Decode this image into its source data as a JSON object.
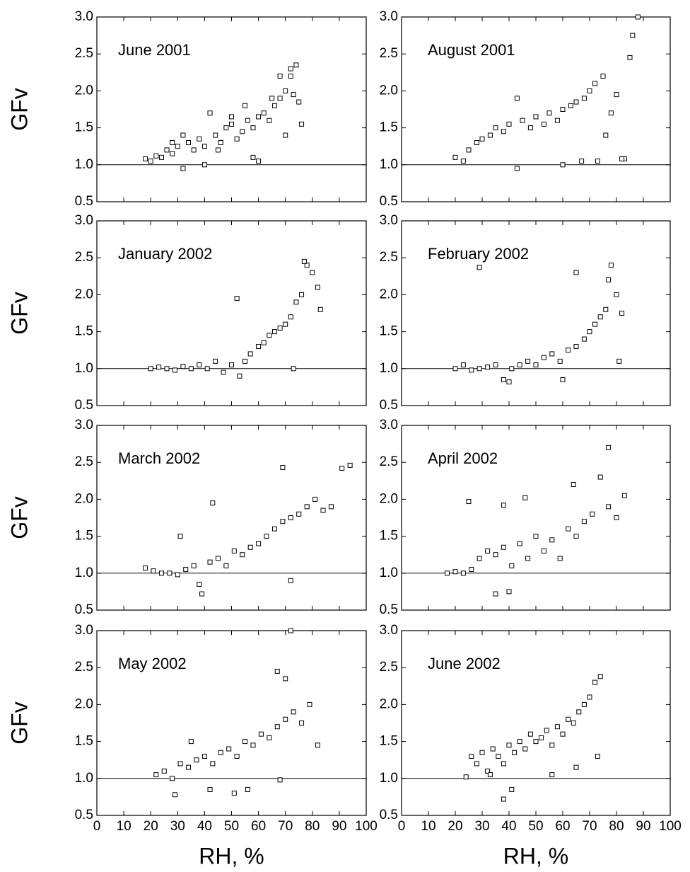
{
  "chart_data": [
    {
      "type": "scatter",
      "title": "June 2001",
      "ylabel": "GFv",
      "xlim": [
        0,
        100
      ],
      "ylim": [
        0.5,
        3.0
      ],
      "xticks": [
        0,
        10,
        20,
        30,
        40,
        50,
        60,
        70,
        80,
        90,
        100
      ],
      "yticks": [
        0.5,
        {
          "value": 1,
          "label": "1.0"
        },
        1.5,
        {
          "value": 2,
          "label": "2.0"
        },
        2.5,
        {
          "value": 3,
          "label": "3.0"
        }
      ],
      "reference_line": 1,
      "color": "#000000",
      "x": [
        18,
        20,
        22,
        24,
        26,
        28,
        30,
        32,
        34,
        36,
        38,
        40,
        42,
        44,
        46,
        48,
        50,
        52,
        54,
        56,
        58,
        60,
        62,
        64,
        66,
        68,
        70,
        72,
        74,
        76,
        32,
        45,
        55,
        65,
        72,
        28,
        40,
        50,
        60,
        70,
        73,
        75,
        68,
        58
      ],
      "y": [
        1.08,
        1.05,
        1.12,
        1.1,
        1.2,
        1.15,
        1.25,
        0.95,
        1.3,
        1.2,
        1.35,
        1.0,
        1.7,
        1.4,
        1.3,
        1.5,
        1.55,
        1.35,
        1.45,
        1.6,
        1.5,
        1.65,
        1.7,
        1.6,
        1.8,
        1.9,
        2.0,
        2.2,
        2.35,
        1.55,
        1.4,
        1.2,
        1.8,
        1.9,
        2.3,
        1.3,
        1.25,
        1.65,
        1.05,
        1.4,
        1.95,
        1.85,
        2.2,
        1.1
      ]
    },
    {
      "type": "scatter",
      "title": "August 2001",
      "xlim": [
        0,
        100
      ],
      "ylim": [
        0.5,
        3.0
      ],
      "xticks": [
        0,
        10,
        20,
        30,
        40,
        50,
        60,
        70,
        80,
        90,
        100
      ],
      "yticks": [
        0.5,
        {
          "value": 1,
          "label": "1.0"
        },
        1.5,
        {
          "value": 2,
          "label": "2.0"
        },
        2.5,
        {
          "value": 3,
          "label": "3.0"
        }
      ],
      "reference_line": 1,
      "color": "#000000",
      "x": [
        20,
        23,
        25,
        28,
        30,
        33,
        35,
        38,
        40,
        43,
        45,
        48,
        50,
        53,
        55,
        58,
        60,
        63,
        65,
        68,
        70,
        72,
        75,
        78,
        80,
        83,
        85,
        86,
        88,
        43,
        60,
        67,
        73,
        76,
        82
      ],
      "y": [
        1.1,
        1.05,
        1.2,
        1.3,
        1.35,
        1.4,
        1.5,
        1.45,
        1.55,
        0.95,
        1.6,
        1.5,
        1.65,
        1.55,
        1.7,
        1.6,
        1.75,
        1.8,
        1.85,
        1.9,
        2.0,
        2.1,
        2.2,
        1.7,
        1.95,
        1.08,
        2.45,
        2.75,
        3.0,
        1.9,
        1.0,
        1.05,
        1.05,
        1.4,
        1.08
      ]
    },
    {
      "type": "scatter",
      "title": "January 2002",
      "ylabel": "GFv",
      "xlim": [
        0,
        100
      ],
      "ylim": [
        0.5,
        3.0
      ],
      "xticks": [
        0,
        10,
        20,
        30,
        40,
        50,
        60,
        70,
        80,
        90,
        100
      ],
      "yticks": [
        0.5,
        {
          "value": 1,
          "label": "1.0"
        },
        1.5,
        {
          "value": 2,
          "label": "2.0"
        },
        2.5,
        {
          "value": 3,
          "label": "3.0"
        }
      ],
      "reference_line": 1,
      "color": "#000000",
      "x": [
        20,
        23,
        26,
        29,
        32,
        35,
        38,
        41,
        44,
        47,
        50,
        53,
        55,
        57,
        60,
        62,
        64,
        66,
        68,
        70,
        72,
        74,
        76,
        78,
        80,
        82,
        83,
        52,
        73,
        77
      ],
      "y": [
        1.0,
        1.02,
        1.0,
        0.98,
        1.03,
        1.0,
        1.05,
        1.0,
        1.1,
        0.95,
        1.05,
        0.9,
        1.1,
        1.2,
        1.3,
        1.35,
        1.45,
        1.5,
        1.55,
        1.6,
        1.7,
        1.9,
        2.0,
        2.4,
        2.3,
        2.1,
        1.8,
        1.95,
        1.0,
        2.45
      ]
    },
    {
      "type": "scatter",
      "title": "February 2002",
      "xlim": [
        0,
        100
      ],
      "ylim": [
        0.5,
        3.0
      ],
      "xticks": [
        0,
        10,
        20,
        30,
        40,
        50,
        60,
        70,
        80,
        90,
        100
      ],
      "yticks": [
        0.5,
        {
          "value": 1,
          "label": "1.0"
        },
        1.5,
        {
          "value": 2,
          "label": "2.0"
        },
        2.5,
        {
          "value": 3,
          "label": "3.0"
        }
      ],
      "reference_line": 1,
      "color": "#000000",
      "x": [
        20,
        23,
        26,
        29,
        32,
        35,
        38,
        41,
        44,
        47,
        50,
        53,
        56,
        59,
        62,
        65,
        68,
        70,
        72,
        74,
        76,
        78,
        80,
        82,
        29,
        65,
        40,
        60,
        81,
        77
      ],
      "y": [
        1.0,
        1.05,
        0.98,
        1.0,
        1.02,
        1.05,
        0.85,
        1.0,
        1.05,
        1.1,
        1.05,
        1.15,
        1.2,
        1.1,
        1.25,
        1.3,
        1.4,
        1.5,
        1.6,
        1.7,
        1.8,
        2.4,
        2.0,
        1.75,
        2.37,
        2.3,
        0.82,
        0.85,
        1.1,
        2.2
      ]
    },
    {
      "type": "scatter",
      "title": "March 2002",
      "ylabel": "GFv",
      "xlim": [
        0,
        100
      ],
      "ylim": [
        0.5,
        3.0
      ],
      "xticks": [
        0,
        10,
        20,
        30,
        40,
        50,
        60,
        70,
        80,
        90,
        100
      ],
      "yticks": [
        0.5,
        {
          "value": 1,
          "label": "1.0"
        },
        1.5,
        {
          "value": 2,
          "label": "2.0"
        },
        2.5,
        {
          "value": 3,
          "label": "3.0"
        }
      ],
      "reference_line": 1,
      "color": "#000000",
      "x": [
        18,
        21,
        24,
        27,
        30,
        33,
        36,
        39,
        42,
        45,
        48,
        51,
        54,
        57,
        60,
        63,
        66,
        69,
        72,
        75,
        78,
        81,
        84,
        87,
        91,
        94,
        43,
        69,
        72,
        38,
        31
      ],
      "y": [
        1.07,
        1.03,
        1.0,
        1.0,
        0.98,
        1.05,
        1.1,
        0.72,
        1.15,
        1.2,
        1.1,
        1.3,
        1.25,
        1.35,
        1.4,
        1.5,
        1.6,
        1.7,
        1.75,
        1.8,
        1.9,
        2.0,
        1.85,
        1.9,
        2.42,
        2.46,
        1.95,
        2.43,
        0.9,
        0.85,
        1.5
      ]
    },
    {
      "type": "scatter",
      "title": "April 2002",
      "xlim": [
        0,
        100
      ],
      "ylim": [
        0.5,
        3.0
      ],
      "xticks": [
        0,
        10,
        20,
        30,
        40,
        50,
        60,
        70,
        80,
        90,
        100
      ],
      "yticks": [
        0.5,
        {
          "value": 1,
          "label": "1.0"
        },
        1.5,
        {
          "value": 2,
          "label": "2.0"
        },
        2.5,
        {
          "value": 3,
          "label": "3.0"
        }
      ],
      "reference_line": 1,
      "color": "#000000",
      "x": [
        17,
        20,
        23,
        26,
        29,
        32,
        35,
        38,
        41,
        44,
        47,
        50,
        53,
        56,
        59,
        62,
        65,
        68,
        71,
        74,
        77,
        80,
        83,
        25,
        38,
        46,
        64,
        77,
        35,
        40
      ],
      "y": [
        1.0,
        1.02,
        1.0,
        1.05,
        1.2,
        1.3,
        1.25,
        1.35,
        1.1,
        1.4,
        1.2,
        1.5,
        1.3,
        1.45,
        1.2,
        1.6,
        1.5,
        1.7,
        1.8,
        2.3,
        1.9,
        1.75,
        2.05,
        1.97,
        1.92,
        2.02,
        2.2,
        2.7,
        0.72,
        0.75
      ]
    },
    {
      "type": "scatter",
      "title": "May 2002",
      "ylabel": "GFv",
      "xlabel": "RH, %",
      "xlim": [
        0,
        100
      ],
      "ylim": [
        0.5,
        3.0
      ],
      "xticks": [
        0,
        10,
        20,
        30,
        40,
        50,
        60,
        70,
        80,
        90,
        100
      ],
      "yticks": [
        0.5,
        {
          "value": 1,
          "label": "1.0"
        },
        1.5,
        {
          "value": 2,
          "label": "2.0"
        },
        2.5,
        {
          "value": 3,
          "label": "3.0"
        }
      ],
      "reference_line": 1,
      "color": "#000000",
      "x": [
        22,
        25,
        28,
        31,
        34,
        37,
        40,
        43,
        46,
        49,
        52,
        55,
        58,
        61,
        64,
        67,
        70,
        73,
        76,
        79,
        82,
        29,
        42,
        51,
        56,
        67,
        68,
        70,
        72,
        35
      ],
      "y": [
        1.05,
        1.1,
        1.0,
        1.2,
        1.15,
        1.25,
        1.3,
        1.2,
        1.35,
        1.4,
        1.3,
        1.5,
        1.45,
        1.6,
        1.55,
        1.7,
        1.8,
        1.9,
        1.75,
        2.0,
        1.45,
        0.78,
        0.85,
        0.8,
        0.85,
        2.45,
        0.98,
        2.35,
        3.0,
        1.5
      ]
    },
    {
      "type": "scatter",
      "title": "June 2002",
      "xlabel": "RH, %",
      "xlim": [
        0,
        100
      ],
      "ylim": [
        0.5,
        3.0
      ],
      "xticks": [
        0,
        10,
        20,
        30,
        40,
        50,
        60,
        70,
        80,
        90,
        100
      ],
      "yticks": [
        0.5,
        {
          "value": 1,
          "label": "1.0"
        },
        1.5,
        {
          "value": 2,
          "label": "2.0"
        },
        2.5,
        {
          "value": 3,
          "label": "3.0"
        }
      ],
      "reference_line": 1,
      "color": "#000000",
      "x": [
        24,
        26,
        28,
        30,
        32,
        34,
        36,
        38,
        40,
        42,
        44,
        46,
        48,
        50,
        52,
        54,
        56,
        58,
        60,
        62,
        64,
        66,
        68,
        70,
        72,
        74,
        38,
        41,
        56,
        65,
        73,
        33
      ],
      "y": [
        1.02,
        1.3,
        1.2,
        1.35,
        1.1,
        1.4,
        1.3,
        1.2,
        1.45,
        1.35,
        1.5,
        1.4,
        1.6,
        1.5,
        1.55,
        1.65,
        1.45,
        1.7,
        1.6,
        1.8,
        1.75,
        1.9,
        2.0,
        2.1,
        2.3,
        2.38,
        0.72,
        0.85,
        1.05,
        1.15,
        1.3,
        1.05
      ]
    }
  ]
}
